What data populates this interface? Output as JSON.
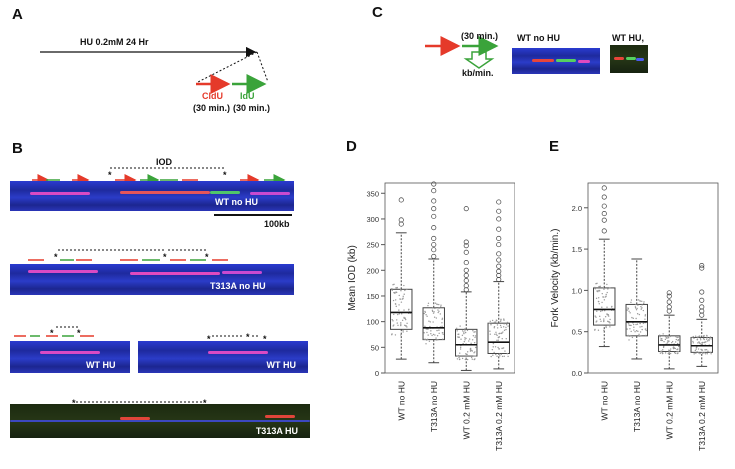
{
  "panels": {
    "A": {
      "label": "A",
      "treatment": "HU 0.2mM 24 Hr",
      "cldu": "CldU",
      "idu": "IdU",
      "cldu_time": "(30 min.)",
      "idu_time": "(30 min.)"
    },
    "B": {
      "label": "B",
      "iod": "IOD",
      "star": "*",
      "scale": "100kb",
      "fibers": [
        "WT no HU",
        "T313A no HU",
        "WT HU",
        "WT HU",
        "T313A HU"
      ]
    },
    "C": {
      "label": "C",
      "time": "(30 min.)",
      "unit": "kb/min.",
      "img1": "WT no HU",
      "img2": "WT HU,"
    },
    "D": {
      "label": "D"
    },
    "E": {
      "label": "E"
    }
  },
  "colors": {
    "red": "#e53a2a",
    "green": "#3aa33a",
    "fiber_blue": "#2a3bd0"
  },
  "chart_data": [
    {
      "type": "box",
      "title": "",
      "ylabel": "Mean IOD (kb)",
      "ylim": [
        0,
        370
      ],
      "yticks": [
        0,
        50,
        100,
        150,
        200,
        250,
        300,
        350
      ],
      "categories": [
        "WT no HU",
        "T313A no HU",
        "WT 0.2 mM HU",
        "T313A 0.2 mM HU"
      ],
      "boxes": [
        {
          "whislo": 27,
          "q1": 85,
          "med": 118,
          "q3": 163,
          "whishi": 273,
          "fliers": [
            290,
            298,
            337
          ]
        },
        {
          "whislo": 20,
          "q1": 65,
          "med": 88,
          "q3": 127,
          "whishi": 222,
          "fliers": [
            227,
            240,
            250,
            262,
            283,
            305,
            320,
            335,
            355,
            368
          ]
        },
        {
          "whislo": 5,
          "q1": 33,
          "med": 55,
          "q3": 85,
          "whishi": 158,
          "fliers": [
            162,
            170,
            180,
            190,
            200,
            215,
            235,
            248,
            255,
            320
          ]
        },
        {
          "whislo": 8,
          "q1": 38,
          "med": 60,
          "q3": 97,
          "whishi": 178,
          "fliers": [
            182,
            190,
            198,
            208,
            220,
            232,
            250,
            262,
            280,
            300,
            315,
            333
          ]
        }
      ]
    },
    {
      "type": "box",
      "title": "",
      "ylabel": "Fork Velocity (kb/min.)",
      "ylim": [
        0,
        2.3
      ],
      "yticks": [
        0.0,
        0.5,
        1.0,
        1.5,
        2.0
      ],
      "categories": [
        "WT no HU",
        "T313A no HU",
        "WT 0.2 mM HU",
        "T313A 0.2 mM HU"
      ],
      "boxes": [
        {
          "whislo": 0.32,
          "q1": 0.58,
          "med": 0.77,
          "q3": 1.03,
          "whishi": 1.62,
          "fliers": [
            1.72,
            1.85,
            1.93,
            2.02,
            2.13,
            2.24
          ]
        },
        {
          "whislo": 0.17,
          "q1": 0.45,
          "med": 0.62,
          "q3": 0.83,
          "whishi": 1.38,
          "fliers": []
        },
        {
          "whislo": 0.05,
          "q1": 0.26,
          "med": 0.34,
          "q3": 0.45,
          "whishi": 0.7,
          "fliers": [
            0.75,
            0.8,
            0.86,
            0.93,
            0.97
          ]
        },
        {
          "whislo": 0.08,
          "q1": 0.25,
          "med": 0.33,
          "q3": 0.43,
          "whishi": 0.65,
          "fliers": [
            0.7,
            0.75,
            0.8,
            0.88,
            0.98,
            1.27,
            1.3
          ]
        }
      ]
    }
  ]
}
